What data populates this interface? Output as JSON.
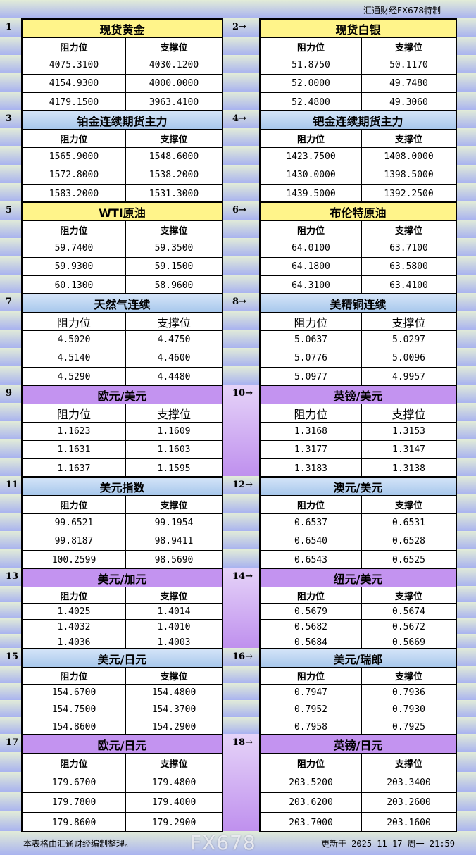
{
  "header": {
    "title": "汇通财经FX678特制"
  },
  "labels": {
    "resistance": "阻力位",
    "support": "支撑位"
  },
  "sections": [
    {
      "num": "1",
      "name": "现货黄金",
      "color": "yellow",
      "rows": [
        [
          "4075.3100",
          "4030.1200"
        ],
        [
          "4154.9300",
          "4000.0000"
        ],
        [
          "4179.1500",
          "3963.4100"
        ]
      ]
    },
    {
      "num": "2→",
      "name": "现货白银",
      "color": "yellow",
      "rows": [
        [
          "51.8750",
          "50.1170"
        ],
        [
          "52.0000",
          "49.7480"
        ],
        [
          "52.4800",
          "49.3060"
        ]
      ]
    },
    {
      "num": "3",
      "name": "铂金连续期货主力",
      "color": "blue",
      "rows": [
        [
          "1565.9000",
          "1548.6000"
        ],
        [
          "1572.8000",
          "1538.2000"
        ],
        [
          "1583.2000",
          "1531.3000"
        ]
      ]
    },
    {
      "num": "4→",
      "name": "钯金连续期货主力",
      "color": "blue",
      "rows": [
        [
          "1423.7500",
          "1408.0000"
        ],
        [
          "1430.0000",
          "1398.5000"
        ],
        [
          "1439.5000",
          "1392.2500"
        ]
      ]
    },
    {
      "num": "5",
      "name": "WTI原油",
      "color": "yellow",
      "rows": [
        [
          "59.7400",
          "59.3500"
        ],
        [
          "59.9300",
          "59.1500"
        ],
        [
          "60.1300",
          "58.9600"
        ]
      ]
    },
    {
      "num": "6→",
      "name": "布伦特原油",
      "color": "yellow",
      "rows": [
        [
          "64.0100",
          "63.7100"
        ],
        [
          "64.1800",
          "63.5800"
        ],
        [
          "64.3100",
          "63.4100"
        ]
      ]
    },
    {
      "num": "7",
      "name": "天然气连续",
      "color": "blue",
      "rows": [
        [
          "4.5020",
          "4.4750"
        ],
        [
          "4.5140",
          "4.4600"
        ],
        [
          "4.5290",
          "4.4480"
        ]
      ]
    },
    {
      "num": "8→",
      "name": "美精铜连续",
      "color": "blue",
      "rows": [
        [
          "5.0637",
          "5.0297"
        ],
        [
          "5.0776",
          "5.0096"
        ],
        [
          "5.0977",
          "4.9957"
        ]
      ]
    },
    {
      "num": "9",
      "name": "欧元/美元",
      "color": "purple",
      "rows": [
        [
          "1.1623",
          "1.1609"
        ],
        [
          "1.1631",
          "1.1603"
        ],
        [
          "1.1637",
          "1.1595"
        ]
      ]
    },
    {
      "num": "10→",
      "name": "英镑/美元",
      "color": "purple",
      "rows": [
        [
          "1.3168",
          "1.3153"
        ],
        [
          "1.3177",
          "1.3147"
        ],
        [
          "1.3183",
          "1.3138"
        ]
      ]
    },
    {
      "num": "11",
      "name": "美元指数",
      "color": "blue",
      "rows": [
        [
          "99.6521",
          "99.1954"
        ],
        [
          "99.8187",
          "98.9411"
        ],
        [
          "100.2599",
          "98.5690"
        ]
      ]
    },
    {
      "num": "12→",
      "name": "澳元/美元",
      "color": "blue",
      "rows": [
        [
          "0.6537",
          "0.6531"
        ],
        [
          "0.6540",
          "0.6528"
        ],
        [
          "0.6543",
          "0.6525"
        ]
      ]
    },
    {
      "num": "13",
      "name": "美元/加元",
      "color": "purple",
      "rows": [
        [
          "1.4025",
          "1.4014"
        ],
        [
          "1.4032",
          "1.4010"
        ],
        [
          "1.4036",
          "1.4003"
        ]
      ]
    },
    {
      "num": "14→",
      "name": "纽元/美元",
      "color": "purple",
      "rows": [
        [
          "0.5679",
          "0.5674"
        ],
        [
          "0.5682",
          "0.5672"
        ],
        [
          "0.5684",
          "0.5669"
        ]
      ]
    },
    {
      "num": "15",
      "name": "美元/日元",
      "color": "blue",
      "rows": [
        [
          "154.6700",
          "154.4800"
        ],
        [
          "154.7500",
          "154.3700"
        ],
        [
          "154.8600",
          "154.2900"
        ]
      ]
    },
    {
      "num": "16→",
      "name": "美元/瑞郎",
      "color": "blue",
      "rows": [
        [
          "0.7947",
          "0.7936"
        ],
        [
          "0.7952",
          "0.7930"
        ],
        [
          "0.7958",
          "0.7925"
        ]
      ]
    },
    {
      "num": "17",
      "name": "欧元/日元",
      "color": "purple",
      "rows": [
        [
          "179.6700",
          "179.4800"
        ],
        [
          "179.7800",
          "179.4000"
        ],
        [
          "179.8600",
          "179.2900"
        ]
      ]
    },
    {
      "num": "18→",
      "name": "英镑/日元",
      "color": "purple",
      "rows": [
        [
          "203.5200",
          "203.3400"
        ],
        [
          "203.6200",
          "203.2600"
        ],
        [
          "203.7000",
          "203.1600"
        ]
      ]
    }
  ],
  "footer": {
    "note": "本表格由汇通财经编制整理。",
    "updated": "更新于 2025-11-17 周一 21:59"
  },
  "watermark": "FX678"
}
